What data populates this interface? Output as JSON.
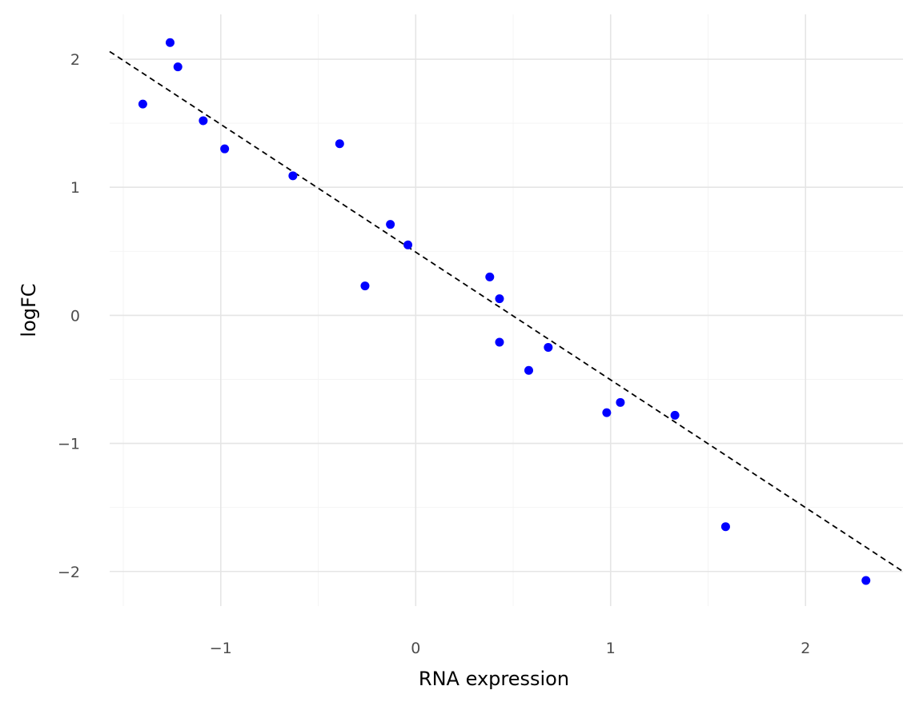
{
  "chart_data": {
    "type": "scatter",
    "title": "",
    "xlabel": "RNA expression",
    "ylabel": "logFC",
    "xlim": [
      -1.57,
      2.5
    ],
    "ylim": [
      -2.27,
      2.35
    ],
    "x_ticks": [
      -1,
      0,
      1,
      2
    ],
    "y_ticks": [
      -2,
      -1,
      0,
      1,
      2
    ],
    "x_tick_labels": [
      "−1",
      "0",
      "1",
      "2"
    ],
    "y_tick_labels": [
      "−2",
      "−1",
      "0",
      "1",
      "2"
    ],
    "grid": true,
    "point_color": "#0000ff",
    "points": [
      {
        "x": -1.4,
        "y": 1.65
      },
      {
        "x": -1.26,
        "y": 2.13
      },
      {
        "x": -1.22,
        "y": 1.94
      },
      {
        "x": -1.09,
        "y": 1.52
      },
      {
        "x": -0.98,
        "y": 1.3
      },
      {
        "x": -0.63,
        "y": 1.09
      },
      {
        "x": -0.39,
        "y": 1.34
      },
      {
        "x": -0.26,
        "y": 0.23
      },
      {
        "x": -0.13,
        "y": 0.71
      },
      {
        "x": -0.04,
        "y": 0.55
      },
      {
        "x": 0.38,
        "y": 0.3
      },
      {
        "x": 0.43,
        "y": 0.13
      },
      {
        "x": 0.43,
        "y": -0.21
      },
      {
        "x": 0.58,
        "y": -0.43
      },
      {
        "x": 0.68,
        "y": -0.25
      },
      {
        "x": 0.98,
        "y": -0.76
      },
      {
        "x": 1.05,
        "y": -0.68
      },
      {
        "x": 1.33,
        "y": -0.78
      },
      {
        "x": 1.59,
        "y": -1.65
      },
      {
        "x": 2.31,
        "y": -2.07
      }
    ],
    "fit_line": {
      "style": "dashed",
      "color": "#000000",
      "x": [
        -1.57,
        2.5
      ],
      "y": [
        2.06,
        -2.0
      ]
    }
  }
}
